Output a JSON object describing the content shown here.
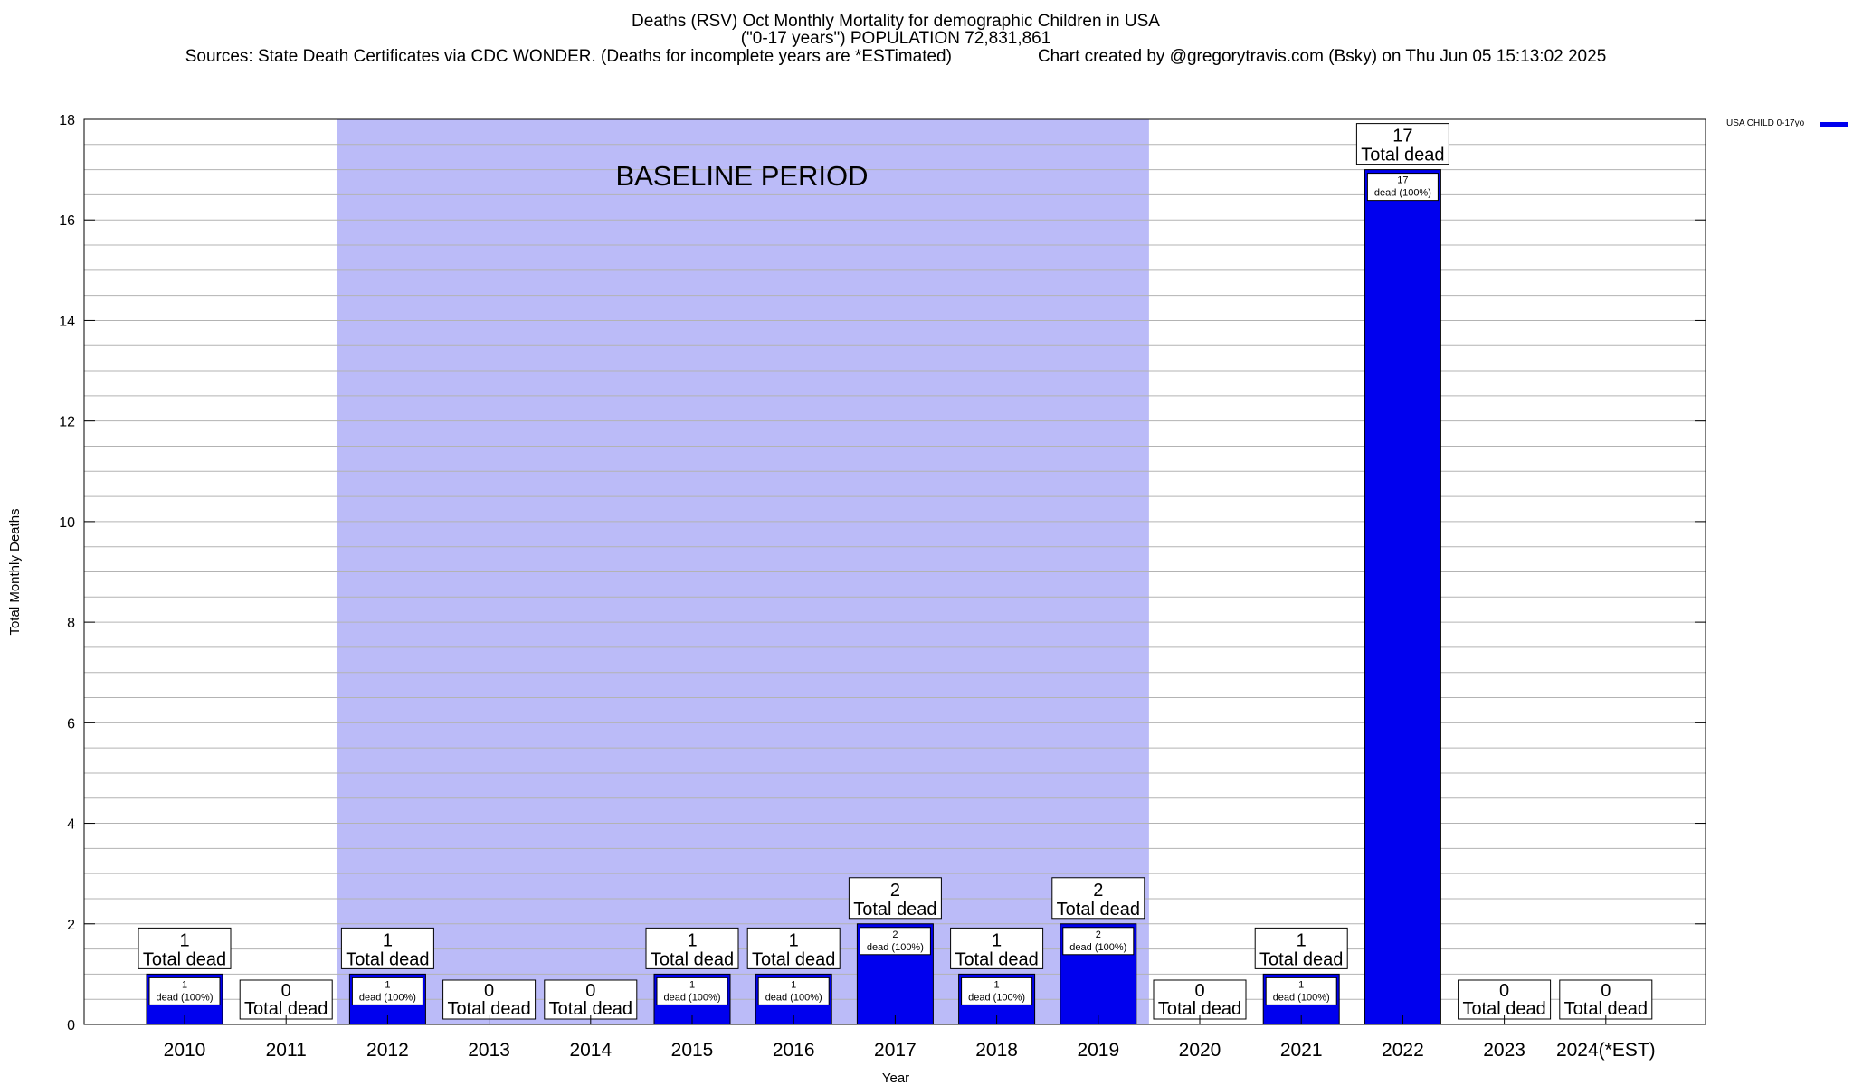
{
  "header": {
    "title": "Deaths (RSV) Oct Monthly Mortality for demographic Children in USA",
    "subtitle": "(\"0-17 years\") POPULATION 72,831,861",
    "sources": "Sources: State Death Certificates via CDC WONDER. (Deaths for incomplete years are *ESTimated)",
    "credit": "Chart created by @gregorytravis.com (Bsky) on Thu Jun 05 15:13:02 2025"
  },
  "legend": {
    "label": "USA CHILD 0-17yo",
    "color": "#0000ee"
  },
  "colors": {
    "bar": "#0000ee",
    "baseline_band": "#bbbbf8",
    "grid": "#b3b3b3"
  },
  "chart_data": {
    "type": "bar",
    "xlabel": "Year",
    "ylabel": "Total Monthly Deaths",
    "ylim": [
      0,
      18
    ],
    "yticks": [
      0,
      2,
      4,
      6,
      8,
      10,
      12,
      14,
      16,
      18
    ],
    "grid": true,
    "legend_position": "top-right",
    "baseline": {
      "label": "BASELINE PERIOD",
      "from": "2012",
      "to": "2019"
    },
    "categories": [
      "2010",
      "2011",
      "2012",
      "2013",
      "2014",
      "2015",
      "2016",
      "2017",
      "2018",
      "2019",
      "2020",
      "2021",
      "2022",
      "2023",
      "2024(*EST)"
    ],
    "series": [
      {
        "name": "USA CHILD 0-17yo",
        "values": [
          1,
          0,
          1,
          0,
          0,
          1,
          1,
          2,
          1,
          2,
          0,
          1,
          17,
          0,
          0
        ]
      }
    ],
    "total_label": "Total dead",
    "inner_label_suffix": "dead (100%)"
  }
}
